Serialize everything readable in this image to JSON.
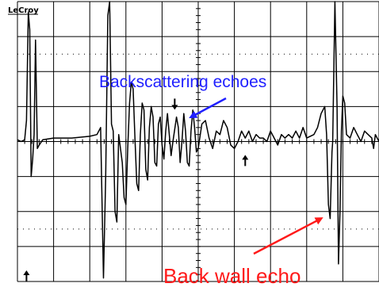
{
  "brand": "LeCroy",
  "colors": {
    "trace": "#000000",
    "grid": "#000000",
    "backscatter_annotation": "#2020ff",
    "backwall_annotation": "#ff1a1a"
  },
  "chart_data": {
    "type": "line",
    "title": "",
    "xlabel": "",
    "ylabel": "",
    "grid": true,
    "divisions": {
      "x": 10,
      "y": 8
    },
    "xlim": [
      0,
      10
    ],
    "ylim": [
      -4,
      4
    ],
    "series": [
      {
        "values": [
          [
            0.0,
            0.05
          ],
          [
            0.1,
            0.0
          ],
          [
            0.2,
            0.05
          ],
          [
            0.25,
            0.6
          ],
          [
            0.3,
            3.7
          ],
          [
            0.34,
            3.2
          ],
          [
            0.38,
            -1.0
          ],
          [
            0.42,
            -0.5
          ],
          [
            0.46,
            0.2
          ],
          [
            0.5,
            2.9
          ],
          [
            0.55,
            -0.2
          ],
          [
            0.6,
            -0.1
          ],
          [
            0.7,
            0.05
          ],
          [
            1.0,
            0.1
          ],
          [
            1.5,
            0.1
          ],
          [
            2.0,
            0.15
          ],
          [
            2.2,
            0.2
          ],
          [
            2.3,
            0.4
          ],
          [
            2.38,
            -3.9
          ],
          [
            2.44,
            -1.0
          ],
          [
            2.5,
            3.6
          ],
          [
            2.55,
            4.0
          ],
          [
            2.6,
            0.5
          ],
          [
            2.65,
            0.3
          ],
          [
            2.7,
            -2.0
          ],
          [
            2.75,
            -2.3
          ],
          [
            2.8,
            0.2
          ],
          [
            2.9,
            -0.6
          ],
          [
            2.95,
            -1.6
          ],
          [
            3.0,
            -1.8
          ],
          [
            3.05,
            -0.2
          ],
          [
            3.1,
            1.1
          ],
          [
            3.15,
            1.7
          ],
          [
            3.2,
            1.5
          ],
          [
            3.25,
            0.1
          ],
          [
            3.3,
            -1.2
          ],
          [
            3.35,
            -1.4
          ],
          [
            3.4,
            0.2
          ],
          [
            3.45,
            1.1
          ],
          [
            3.5,
            0.9
          ],
          [
            3.55,
            -0.8
          ],
          [
            3.6,
            -1.1
          ],
          [
            3.65,
            0.4
          ],
          [
            3.7,
            1.0
          ],
          [
            3.75,
            0.7
          ],
          [
            3.8,
            -0.6
          ],
          [
            3.85,
            -0.7
          ],
          [
            3.9,
            0.5
          ],
          [
            3.95,
            0.7
          ],
          [
            4.0,
            -0.1
          ],
          [
            4.05,
            -0.5
          ],
          [
            4.1,
            0.3
          ],
          [
            4.15,
            0.8
          ],
          [
            4.2,
            0.2
          ],
          [
            4.25,
            -0.4
          ],
          [
            4.3,
            0.0
          ],
          [
            4.4,
            0.7
          ],
          [
            4.45,
            0.4
          ],
          [
            4.5,
            -0.6
          ],
          [
            4.55,
            0.0
          ],
          [
            4.6,
            0.8
          ],
          [
            4.65,
            0.3
          ],
          [
            4.7,
            -0.6
          ],
          [
            4.75,
            -0.7
          ],
          [
            4.8,
            0.3
          ],
          [
            4.85,
            0.9
          ],
          [
            4.9,
            0.4
          ],
          [
            4.95,
            -0.3
          ],
          [
            5.0,
            -0.2
          ],
          [
            5.1,
            0.5
          ],
          [
            5.2,
            0.6
          ],
          [
            5.3,
            0.1
          ],
          [
            5.4,
            -0.2
          ],
          [
            5.5,
            0.3
          ],
          [
            5.6,
            0.2
          ],
          [
            5.7,
            0.6
          ],
          [
            5.8,
            0.4
          ],
          [
            5.9,
            -0.1
          ],
          [
            6.0,
            -0.2
          ],
          [
            6.1,
            0.0
          ],
          [
            6.2,
            0.3
          ],
          [
            6.3,
            0.1
          ],
          [
            6.4,
            0.3
          ],
          [
            6.5,
            0.0
          ],
          [
            6.6,
            0.2
          ],
          [
            6.7,
            0.1
          ],
          [
            6.8,
            0.1
          ],
          [
            6.9,
            0.0
          ],
          [
            7.0,
            0.3
          ],
          [
            7.1,
            0.1
          ],
          [
            7.2,
            -0.1
          ],
          [
            7.3,
            0.2
          ],
          [
            7.4,
            0.1
          ],
          [
            7.5,
            0.2
          ],
          [
            7.6,
            0.1
          ],
          [
            7.7,
            0.3
          ],
          [
            7.8,
            0.1
          ],
          [
            7.9,
            0.4
          ],
          [
            8.0,
            0.1
          ],
          [
            8.2,
            0.2
          ],
          [
            8.3,
            0.4
          ],
          [
            8.4,
            0.8
          ],
          [
            8.5,
            1.0
          ],
          [
            8.55,
            0.2
          ],
          [
            8.6,
            -1.8
          ],
          [
            8.65,
            -2.2
          ],
          [
            8.7,
            -0.3
          ],
          [
            8.72,
            0.0
          ],
          [
            8.78,
            4.0
          ],
          [
            8.84,
            1.0
          ],
          [
            8.88,
            -3.5
          ],
          [
            8.92,
            -2.0
          ],
          [
            8.96,
            0.3
          ],
          [
            9.0,
            1.3
          ],
          [
            9.05,
            1.1
          ],
          [
            9.1,
            0.2
          ],
          [
            9.2,
            0.1
          ],
          [
            9.3,
            0.4
          ],
          [
            9.4,
            0.2
          ],
          [
            9.5,
            0.0
          ],
          [
            9.6,
            0.3
          ],
          [
            9.7,
            0.2
          ],
          [
            9.8,
            0.1
          ],
          [
            9.85,
            -0.2
          ],
          [
            9.9,
            0.2
          ],
          [
            10.0,
            0.0
          ]
        ]
      }
    ],
    "markers": [
      {
        "x": 0.25,
        "y": -4.0,
        "symbol": "arrow-up"
      },
      {
        "x": 4.35,
        "y": 1.0,
        "symbol": "arrow-down"
      },
      {
        "x": 6.3,
        "y": -0.7,
        "symbol": "arrow-up"
      }
    ]
  },
  "annotations": {
    "backscatter": {
      "text": "Backscattering echoes",
      "arrow_tip": [
        4.8,
        0.7
      ]
    },
    "backwall": {
      "text": "Back wall echo",
      "arrow_tip": [
        8.4,
        -2.2
      ]
    }
  }
}
